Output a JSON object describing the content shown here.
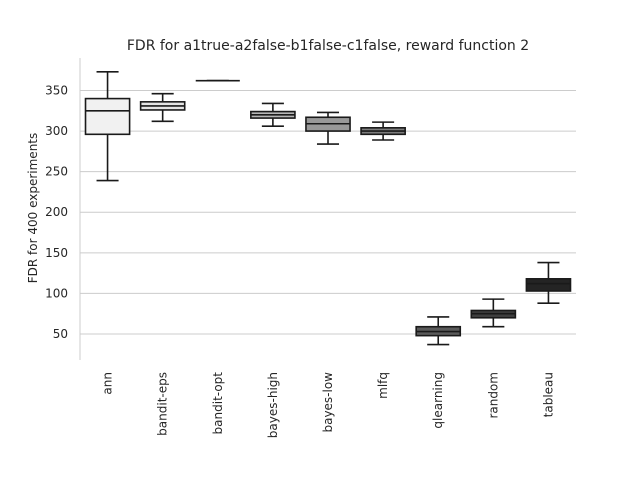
{
  "chart_data": {
    "type": "box",
    "title": "FDR for a1true-a2false-b1false-c1false, reward function 2",
    "xlabel": "",
    "ylabel": "FDR for 400 experiments",
    "ylim": [
      18,
      390
    ],
    "yticks": [
      50,
      100,
      150,
      200,
      250,
      300,
      350
    ],
    "grid": "horizontal",
    "categories": [
      "ann",
      "bandit-eps",
      "bandit-opt",
      "bayes-high",
      "bayes-low",
      "mlfq",
      "qlearning",
      "random",
      "tableau"
    ],
    "boxes": [
      {
        "category": "ann",
        "whislo": 239,
        "q1": 296,
        "med": 325,
        "q3": 340,
        "whishi": 373,
        "color": "#f1f1f1"
      },
      {
        "category": "bandit-eps",
        "whislo": 312,
        "q1": 326,
        "med": 331,
        "q3": 336,
        "whishi": 346,
        "color": "#e4e4e4"
      },
      {
        "category": "bandit-opt",
        "whislo": 362,
        "q1": 362,
        "med": 362,
        "q3": 362,
        "whishi": 362,
        "color": "#d2d2d2"
      },
      {
        "category": "bayes-high",
        "whislo": 306,
        "q1": 316,
        "med": 320,
        "q3": 324,
        "whishi": 334,
        "color": "#b6b6b6"
      },
      {
        "category": "bayes-low",
        "whislo": 284,
        "q1": 300,
        "med": 309,
        "q3": 317,
        "whishi": 323,
        "color": "#999999"
      },
      {
        "category": "mlfq",
        "whislo": 289,
        "q1": 296,
        "med": 300,
        "q3": 304,
        "whishi": 311,
        "color": "#7c7c7c"
      },
      {
        "category": "qlearning",
        "whislo": 37,
        "q1": 48,
        "med": 53,
        "q3": 59,
        "whishi": 71,
        "color": "#5a5a5a"
      },
      {
        "category": "random",
        "whislo": 59,
        "q1": 70,
        "med": 75,
        "q3": 79,
        "whishi": 93,
        "color": "#3e3e3e"
      },
      {
        "category": "tableau",
        "whislo": 88,
        "q1": 103,
        "med": 112,
        "q3": 118,
        "whishi": 138,
        "color": "#242424"
      }
    ]
  }
}
